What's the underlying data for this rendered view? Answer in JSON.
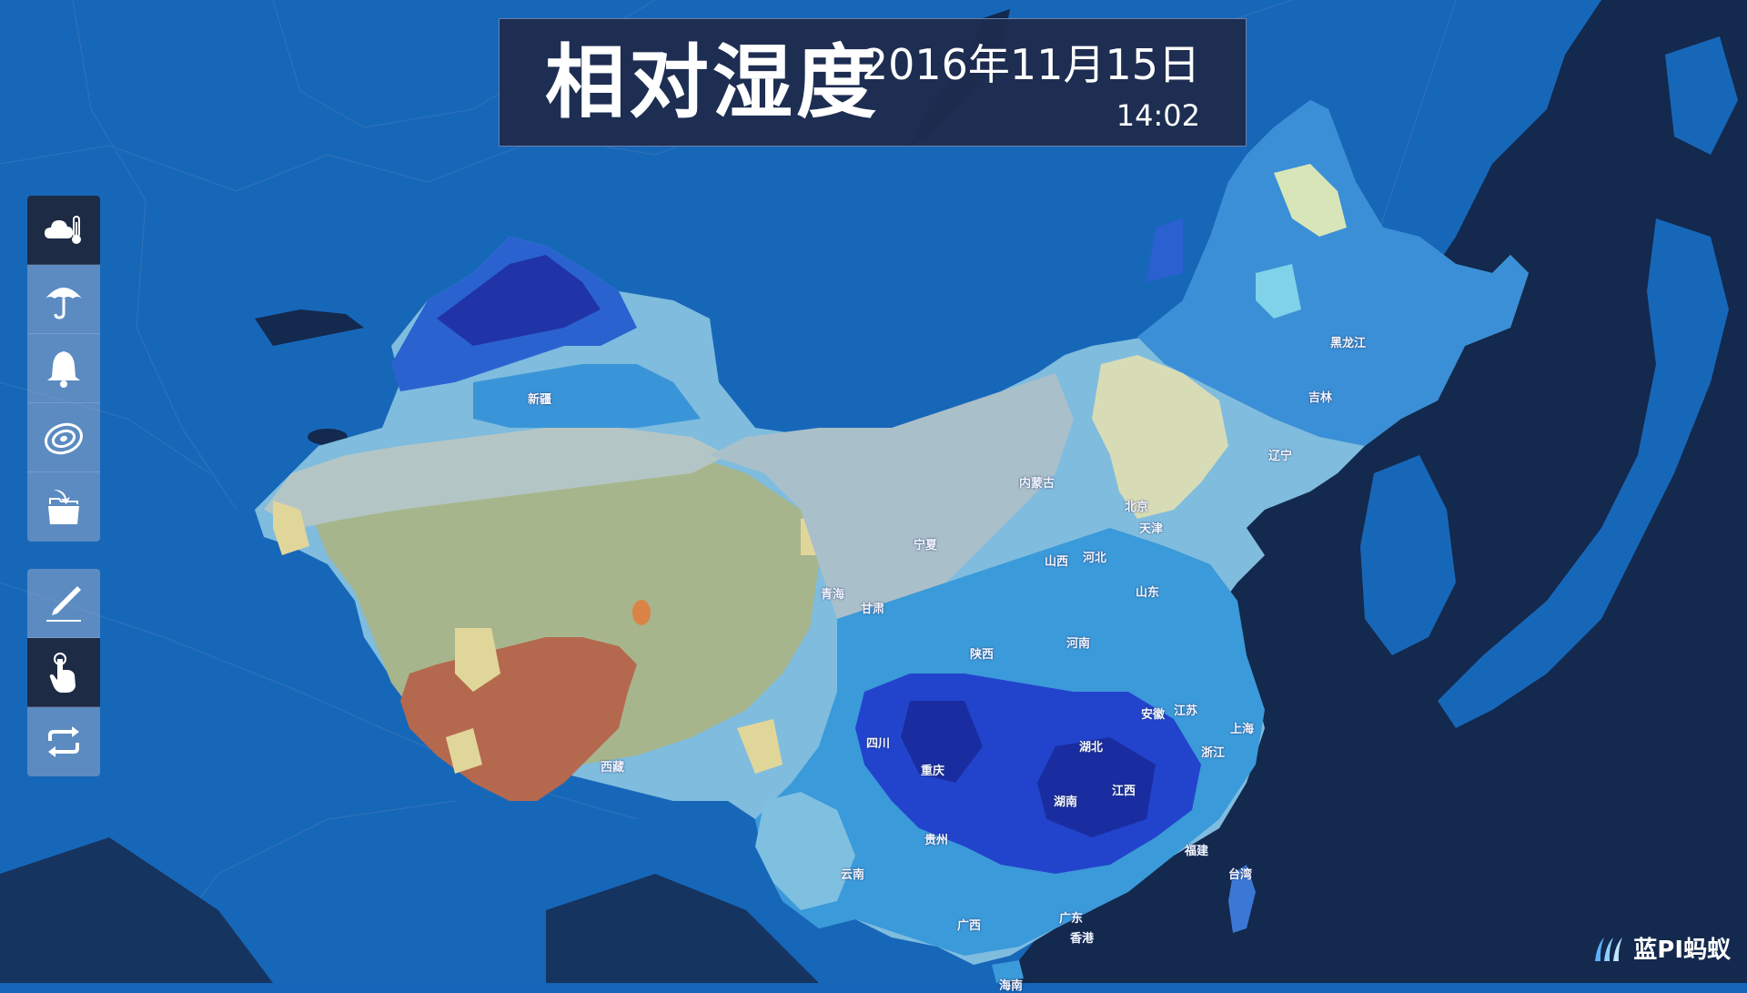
{
  "header": {
    "title": "相对湿度",
    "date": "2016年11月15日",
    "time": "14:02"
  },
  "toolbar_top": [
    {
      "name": "weather-temperature",
      "icon": "cloud-thermometer-icon",
      "active": true
    },
    {
      "name": "precipitation",
      "icon": "umbrella-icon",
      "active": false
    },
    {
      "name": "alert",
      "icon": "bell-icon",
      "active": false
    },
    {
      "name": "contour",
      "icon": "contour-icon",
      "active": false
    },
    {
      "name": "folder-open",
      "icon": "open-folder-icon",
      "active": false
    }
  ],
  "toolbar_bottom": [
    {
      "name": "draw",
      "icon": "pen-icon",
      "active": false
    },
    {
      "name": "pointer",
      "icon": "hand-pointer-icon",
      "active": true
    },
    {
      "name": "loop",
      "icon": "repeat-icon",
      "active": false
    }
  ],
  "provinces": [
    {
      "id": "xinjiang",
      "label": "新疆"
    },
    {
      "id": "xizang",
      "label": "西藏"
    },
    {
      "id": "qinghai",
      "label": "青海"
    },
    {
      "id": "gansu",
      "label": "甘肃"
    },
    {
      "id": "ningxia",
      "label": "宁夏"
    },
    {
      "id": "neimenggu",
      "label": "内蒙古"
    },
    {
      "id": "heilongjiang",
      "label": "黑龙江"
    },
    {
      "id": "jilin",
      "label": "吉林"
    },
    {
      "id": "liaoning",
      "label": "辽宁"
    },
    {
      "id": "beijing",
      "label": "北京"
    },
    {
      "id": "tianjin",
      "label": "天津"
    },
    {
      "id": "hebei",
      "label": "河北"
    },
    {
      "id": "shanxi",
      "label": "山西"
    },
    {
      "id": "shandong",
      "label": "山东"
    },
    {
      "id": "shaanxi",
      "label": "陕西"
    },
    {
      "id": "henan",
      "label": "河南"
    },
    {
      "id": "jiangsu",
      "label": "江苏"
    },
    {
      "id": "anhui",
      "label": "安徽"
    },
    {
      "id": "shanghai",
      "label": "上海"
    },
    {
      "id": "hubei",
      "label": "湖北"
    },
    {
      "id": "zhejiang",
      "label": "浙江"
    },
    {
      "id": "sichuan",
      "label": "四川"
    },
    {
      "id": "chongqing",
      "label": "重庆"
    },
    {
      "id": "hunan",
      "label": "湖南"
    },
    {
      "id": "jiangxi",
      "label": "江西"
    },
    {
      "id": "guizhou",
      "label": "贵州"
    },
    {
      "id": "fujian",
      "label": "福建"
    },
    {
      "id": "yunnan",
      "label": "云南"
    },
    {
      "id": "taiwan",
      "label": "台湾"
    },
    {
      "id": "guangxi",
      "label": "广西"
    },
    {
      "id": "guangdong",
      "label": "广东"
    },
    {
      "id": "hongkong",
      "label": "香港"
    },
    {
      "id": "hainan",
      "label": "海南"
    }
  ],
  "brand": {
    "text": "蓝PI蚂蚁",
    "icon": "lanpi-logo-icon"
  },
  "colors": {
    "ocean_land_bg": "#1565b8",
    "sea_dark": "#12274a",
    "header_bg": "#1e2c4e",
    "dry_brown": "#b5694e",
    "dry_yellow": "#e0d58e",
    "dry_olive": "#a6b38b",
    "mid_grey": "#a7bfc9",
    "light_blue": "#82c0e0",
    "mid_blue": "#3a9ad9",
    "deep_blue": "#2040c8",
    "deepest_blue": "#1a2fa0"
  }
}
